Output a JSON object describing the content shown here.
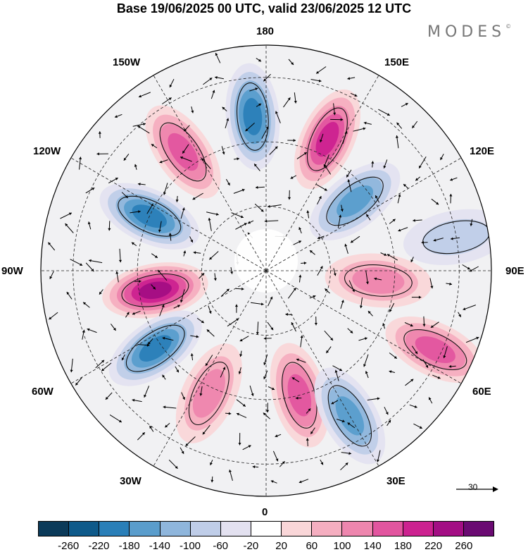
{
  "title": "Base 19/06/2025 00 UTC, valid 23/06/2025 12 UTC",
  "brand": "MODES",
  "brand_mark": "©",
  "longitude_labels": {
    "top": "180",
    "bottom": "0",
    "left": "90W",
    "right": "90E",
    "upper_left_1": "150W",
    "upper_left_2": "120W",
    "upper_right_1": "150E",
    "upper_right_2": "120E",
    "lower_left_1": "60W",
    "lower_left_2": "30W",
    "lower_right_1": "60E",
    "lower_right_2": "30E"
  },
  "reference_vector": {
    "label": "30"
  },
  "colorbar": {
    "colors": [
      "#0b3a59",
      "#0f5a8a",
      "#2a7fb8",
      "#5a9dcc",
      "#8fb6dc",
      "#bfcde8",
      "#e3e1f0",
      "#ffffff",
      "#f9d6d8",
      "#f5aec0",
      "#ee86ae",
      "#e2559f",
      "#cc2290",
      "#a30e84",
      "#6a0a72"
    ],
    "ticks": [
      "-260",
      "-220",
      "-180",
      "-140",
      "-100",
      "-60",
      "-20",
      "20",
      "60",
      "100",
      "140",
      "180",
      "220",
      "260"
    ]
  },
  "anomaly_cells": [
    {
      "kind": "neg",
      "strength": 4,
      "lon": -175,
      "lat": 42
    },
    {
      "kind": "pos",
      "strength": 4,
      "lon": 155,
      "lat": 45
    },
    {
      "kind": "neg",
      "strength": 3,
      "lon": 128,
      "lat": 55
    },
    {
      "kind": "pos",
      "strength": 3,
      "lon": -145,
      "lat": 45
    },
    {
      "kind": "neg",
      "strength": 4,
      "lon": -115,
      "lat": 50
    },
    {
      "kind": "pos",
      "strength": 5,
      "lon": -80,
      "lat": 55
    },
    {
      "kind": "neg",
      "strength": 4,
      "lon": -55,
      "lat": 48
    },
    {
      "kind": "pos",
      "strength": 2,
      "lon": -25,
      "lat": 48
    },
    {
      "kind": "pos",
      "strength": 3,
      "lon": 15,
      "lat": 50
    },
    {
      "kind": "neg",
      "strength": 3,
      "lon": 30,
      "lat": 38
    },
    {
      "kind": "pos",
      "strength": 3,
      "lon": 65,
      "lat": 32
    },
    {
      "kind": "neg",
      "strength": 1,
      "lon": 100,
      "lat": 30
    },
    {
      "kind": "pos",
      "strength": 2,
      "lon": 85,
      "lat": 55
    }
  ]
}
